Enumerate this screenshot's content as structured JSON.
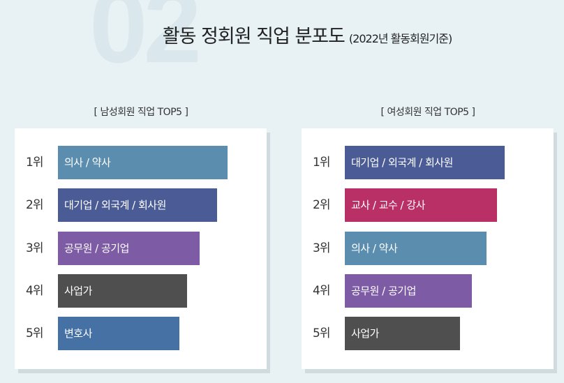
{
  "watermark": "02",
  "title": {
    "main": "활동 정회원 직업 분포도",
    "sub": "(2022년 활동회원기준)"
  },
  "chart_data": [
    {
      "type": "bar",
      "title": "[ 남성회원 직업 TOP5 ]",
      "categories": [
        "1위",
        "2위",
        "3위",
        "4위",
        "5위"
      ],
      "labels": [
        "의사 / 약사",
        "대기업 / 외국계 / 회사원",
        "공무원 / 공기업",
        "사업가",
        "변호사"
      ],
      "colors": [
        "#5b8eae",
        "#4a5b95",
        "#7e5ba5",
        "#4f4f4f",
        "#4571a5"
      ]
    },
    {
      "type": "bar",
      "title": "[ 여성회원 직업 TOP5 ]",
      "categories": [
        "1위",
        "2위",
        "3위",
        "4위",
        "5위"
      ],
      "labels": [
        "대기업 / 외국계 / 회사원",
        "교사 / 교수 / 강사",
        "의사 / 약사",
        "공무원 / 공기업",
        "사업가"
      ],
      "colors": [
        "#4a5b95",
        "#b83066",
        "#5b8eae",
        "#7e5ba5",
        "#4f4f4f"
      ]
    }
  ]
}
